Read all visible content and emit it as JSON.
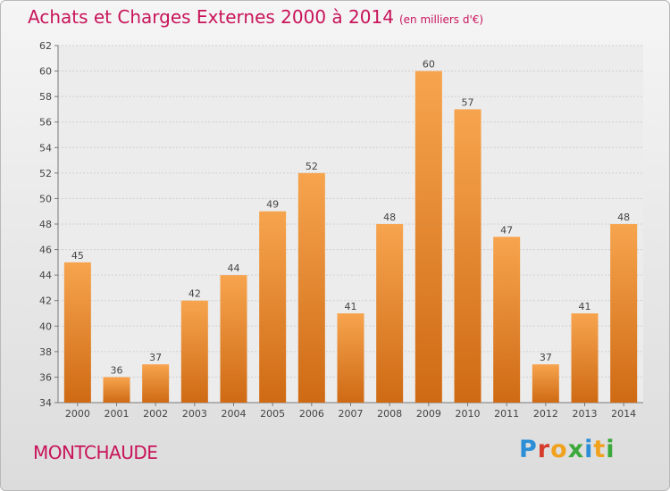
{
  "title": "Achats et Charges Externes 2000 à 2014",
  "subtitle": "(en milliers d'€)",
  "commune": "MONTCHAUDE",
  "logo": {
    "text": "Proxiti",
    "letters": [
      "P",
      "r",
      "o",
      "x",
      "i",
      "t",
      "i"
    ],
    "colors": [
      "#2b8ed6",
      "#d63b2b",
      "#f0a21e",
      "#3ba83b",
      "#2b8ed6",
      "#f0a21e",
      "#3ba83b"
    ]
  },
  "colors": {
    "bar_top": "#f7a44e",
    "bar_bottom": "#cf6a14",
    "title": "#c8145a"
  },
  "chart_data": {
    "type": "bar",
    "categories": [
      "2000",
      "2001",
      "2002",
      "2003",
      "2004",
      "2005",
      "2006",
      "2007",
      "2008",
      "2009",
      "2010",
      "2011",
      "2012",
      "2013",
      "2014"
    ],
    "values": [
      45,
      36,
      37,
      42,
      44,
      49,
      52,
      41,
      48,
      60,
      57,
      47,
      37,
      41,
      48
    ],
    "ylim": [
      34,
      62
    ],
    "yticks": [
      34,
      36,
      38,
      40,
      42,
      44,
      46,
      48,
      50,
      52,
      54,
      56,
      58,
      60,
      62
    ],
    "grid": true,
    "legend": "none"
  }
}
